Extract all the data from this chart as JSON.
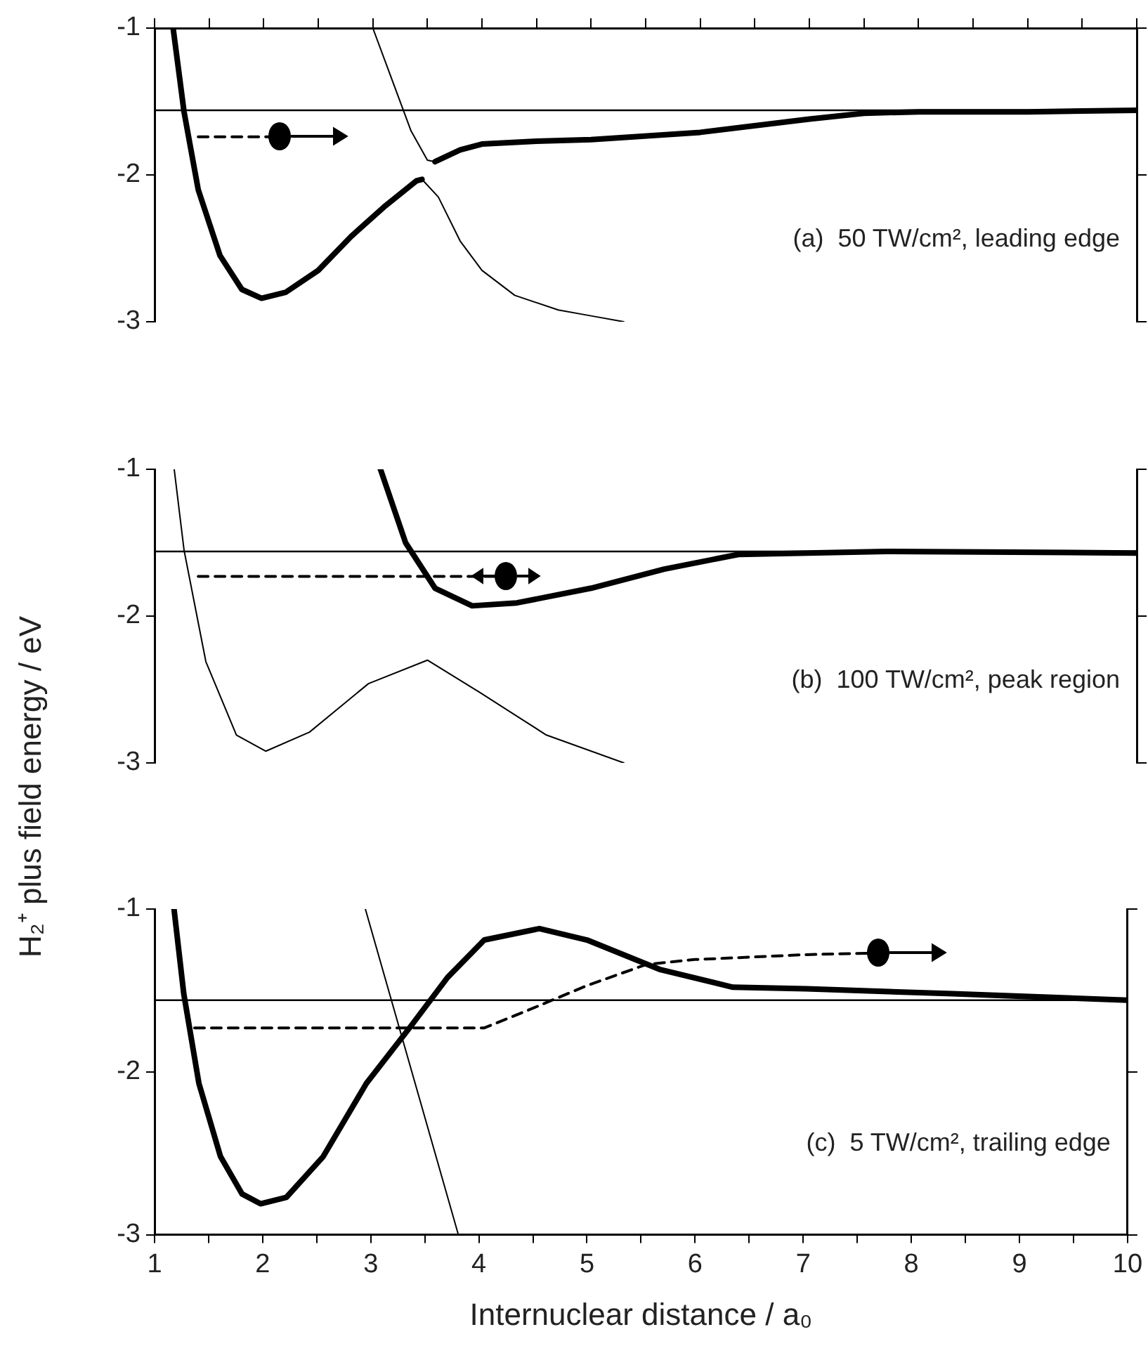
{
  "chart_data": [
    {
      "type": "line",
      "annotations": [
        "(a)  50 TW/cm², leading edge"
      ],
      "xlim": [
        1,
        10
      ],
      "xticks": [
        1,
        {
          "value": 1.5,
          "label": null
        },
        2,
        {
          "value": 2.5,
          "label": null
        },
        3,
        {
          "value": 3.5,
          "label": null
        },
        4,
        {
          "value": 4.5,
          "label": null
        },
        5,
        {
          "value": 5.5,
          "label": null
        },
        6,
        {
          "value": 6.5,
          "label": null
        },
        7,
        {
          "value": 7.5,
          "label": null
        },
        8,
        {
          "value": 8.5,
          "label": null
        },
        9,
        {
          "value": 9.5,
          "label": null
        },
        10
      ],
      "ylim": [
        -3,
        -1
      ],
      "yticks": [
        -1,
        -2,
        -3
      ],
      "tick_labels": "y",
      "grid": false,
      "legend": false,
      "ref_lines": [
        {
          "axis": "y",
          "value": -1.56,
          "color": "#000000"
        }
      ],
      "series": [
        {
          "color": "#000000",
          "x": [
            1.17,
            1.27,
            1.4,
            1.6,
            1.8,
            1.98,
            2.2,
            2.5,
            2.8,
            3.1,
            3.4,
            3.45,
            3.5,
            3.57,
            3.8,
            4.0,
            4.5,
            5,
            6,
            7,
            7.5,
            8,
            9,
            10
          ],
          "values": [
            -1,
            -1.57,
            -2.1,
            -2.55,
            -2.78,
            -2.84,
            -2.8,
            -2.65,
            -2.42,
            -2.22,
            -2.04,
            -2.03,
            null,
            -1.91,
            -1.83,
            -1.79,
            -1.77,
            -1.76,
            -1.71,
            -1.62,
            -1.58,
            -1.57,
            -1.57,
            -1.56
          ]
        },
        {
          "color": "#000000",
          "x": [
            3.0,
            3.2,
            3.35,
            3.5,
            3.57,
            3.5,
            3.45,
            3.6,
            3.8,
            4.0,
            4.3,
            4.7,
            5.0,
            5.3
          ],
          "values": [
            -1,
            -1.4,
            -1.7,
            -1.9,
            -1.91,
            null,
            -2.03,
            -2.15,
            -2.45,
            -2.65,
            -2.82,
            -2.92,
            -2.96,
            -3.0
          ]
        },
        {
          "color": "#000000",
          "line_style": "dashed",
          "x": [
            1.4,
            2.14
          ],
          "values": [
            -1.74,
            -1.74
          ]
        }
      ]
    },
    {
      "type": "line",
      "ylabel": "H₂⁺ plus field energy / eV",
      "annotations": [
        "(b)  100 TW/cm², peak region"
      ],
      "xlim": [
        1,
        10
      ],
      "ylim": [
        -3,
        -1
      ],
      "yticks": [
        -1,
        -2,
        -3
      ],
      "tick_labels": "y",
      "grid": false,
      "legend": false,
      "ref_lines": [
        {
          "axis": "y",
          "value": -1.56,
          "color": "#000000"
        }
      ],
      "series": [
        {
          "color": "#000000",
          "x": [
            3.07,
            3.3,
            3.57,
            3.91,
            4.32,
            5.0,
            5.67,
            6.35,
            7.7,
            10
          ],
          "values": [
            -1,
            -1.5,
            -1.81,
            -1.93,
            -1.91,
            -1.81,
            -1.68,
            -1.58,
            -1.56,
            -1.57
          ]
        },
        {
          "color": "#000000",
          "x": [
            1.18,
            1.27,
            1.47,
            1.75,
            2.02,
            2.42,
            2.96,
            3.5,
            3.98,
            4.59,
            5.3
          ],
          "values": [
            -1,
            -1.55,
            -2.31,
            -2.81,
            -2.92,
            -2.79,
            -2.46,
            -2.3,
            -2.52,
            -2.81,
            -3.0
          ]
        },
        {
          "color": "#000000",
          "line_style": "dashed",
          "x": [
            1.4,
            4.22
          ],
          "values": [
            -1.73,
            -1.73
          ]
        }
      ]
    },
    {
      "type": "line",
      "xlabel": "Internuclear distance / a₀",
      "annotations": [
        "(c)  5 TW/cm², trailing edge"
      ],
      "xlim": [
        1,
        10
      ],
      "xticks": [
        1,
        {
          "value": 1.5,
          "label": null
        },
        2,
        {
          "value": 2.5,
          "label": null
        },
        3,
        {
          "value": 3.5,
          "label": null
        },
        4,
        {
          "value": 4.5,
          "label": null
        },
        5,
        {
          "value": 5.5,
          "label": null
        },
        6,
        {
          "value": 6.5,
          "label": null
        },
        7,
        {
          "value": 7.5,
          "label": null
        },
        8,
        {
          "value": 8.5,
          "label": null
        },
        9,
        {
          "value": 9.5,
          "label": null
        },
        10
      ],
      "ylim": [
        -3,
        -1
      ],
      "yticks": [
        -1,
        -2,
        -3
      ],
      "grid": false,
      "legend": false,
      "ref_lines": [
        {
          "axis": "y",
          "value": -1.56,
          "color": "#000000"
        }
      ],
      "series": [
        {
          "color": "#000000",
          "x": [
            1.18,
            1.27,
            1.41,
            1.61,
            1.81,
            1.98,
            2.22,
            2.56,
            2.96,
            3.37,
            3.71,
            4.05,
            4.56,
            5.0,
            5.67,
            6.35,
            7.03,
            8.38,
            10
          ],
          "values": [
            -1,
            -1.52,
            -2.07,
            -2.52,
            -2.75,
            -2.81,
            -2.77,
            -2.52,
            -2.07,
            -1.72,
            -1.42,
            -1.19,
            -1.12,
            -1.19,
            -1.37,
            -1.48,
            -1.49,
            -1.52,
            -1.56
          ]
        },
        {
          "color": "#000000",
          "x": [
            2.95,
            3.81
          ],
          "values": [
            -1,
            -3.0
          ]
        },
        {
          "color": "#000000",
          "line_style": "dashed",
          "x": [
            1.37,
            4.05,
            4.46,
            5.0,
            5.55,
            6.0,
            7.03,
            7.69
          ],
          "values": [
            -1.73,
            -1.73,
            -1.62,
            -1.47,
            -1.34,
            -1.31,
            -1.28,
            -1.27
          ]
        }
      ]
    }
  ]
}
